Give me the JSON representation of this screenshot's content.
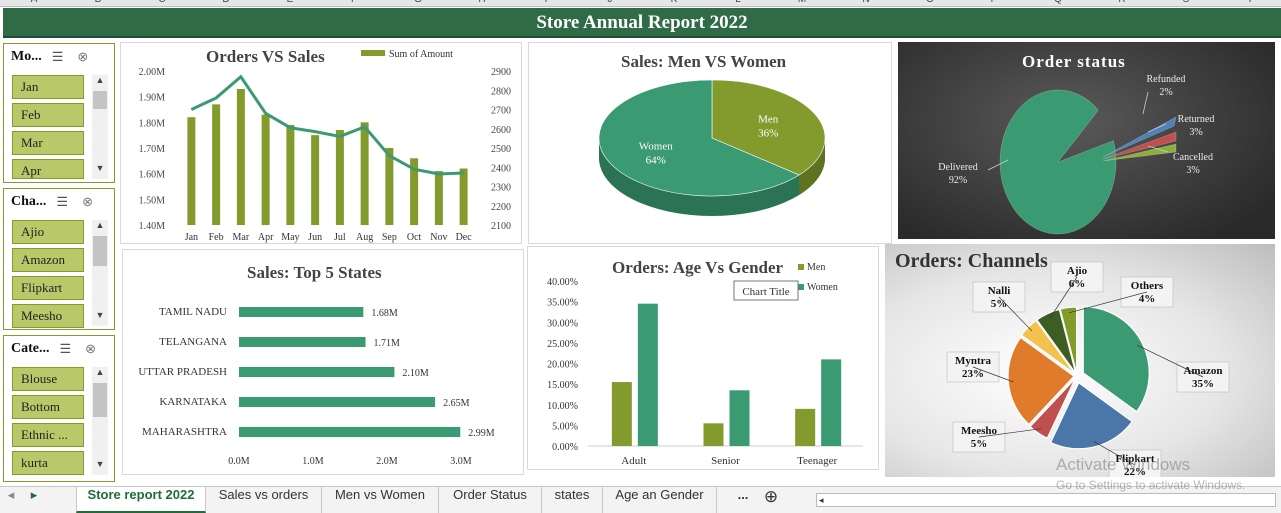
{
  "column_headers": [
    "A",
    "B",
    "C",
    "D",
    "E",
    "F",
    "G",
    "H",
    "I",
    "J",
    "K",
    "L",
    "M",
    "N",
    "O",
    "P",
    "Q",
    "R",
    "S",
    "T"
  ],
  "title": "Store Annual Report 2022",
  "slicers": {
    "month": {
      "header": "Mo...",
      "items": [
        "Jan",
        "Feb",
        "Mar",
        "Apr"
      ]
    },
    "channel": {
      "header": "Cha...",
      "items": [
        "Ajio",
        "Amazon",
        "Flipkart",
        "Meesho"
      ]
    },
    "category": {
      "header": "Cate...",
      "items": [
        "Blouse",
        "Bottom",
        "Ethnic ...",
        "kurta"
      ]
    }
  },
  "colors": {
    "title_bar": "#2e6b46",
    "olive": "#839a2c",
    "teal": "#3a9a72",
    "slicer_item": "#b9c96a"
  },
  "charts": {
    "orders_vs_sales": {
      "title": "Orders VS Sales",
      "legend": "Sum of Amount",
      "y_left_ticks": [
        "2.00M",
        "1.90M",
        "1.80M",
        "1.70M",
        "1.60M",
        "1.50M",
        "1.40M"
      ],
      "y_right_ticks": [
        "2900",
        "2800",
        "2700",
        "2600",
        "2500",
        "2400",
        "2300",
        "2200",
        "2100"
      ]
    },
    "men_vs_women": {
      "title": "Sales: Men VS Women"
    },
    "order_status": {
      "title": "Order status"
    },
    "top5_states": {
      "title": "Sales: Top 5 States",
      "x_ticks": [
        "0.0M",
        "1.0M",
        "2.0M",
        "3.0M"
      ]
    },
    "age_vs_gender": {
      "title": "Orders: Age Vs Gender",
      "tooltip": "Chart Title",
      "y_ticks": [
        "40.00%",
        "35.00%",
        "30.00%",
        "25.00%",
        "20.00%",
        "15.00%",
        "10.00%",
        "5.00%",
        "0.00%"
      ]
    },
    "channels": {
      "title": "Orders: Channels"
    }
  },
  "chart_data": [
    {
      "type": "bar+line",
      "title": "Orders VS Sales",
      "categories": [
        "Jan",
        "Feb",
        "Mar",
        "Apr",
        "May",
        "Jun",
        "Jul",
        "Aug",
        "Sep",
        "Oct",
        "Nov",
        "Dec"
      ],
      "series": [
        {
          "name": "Sum of Amount",
          "axis": "left",
          "values": [
            1.82,
            1.87,
            1.93,
            1.83,
            1.79,
            1.75,
            1.77,
            1.8,
            1.7,
            1.66,
            1.61,
            1.62
          ]
        },
        {
          "axis": "right",
          "values": [
            2700,
            2760,
            2870,
            2680,
            2605,
            2585,
            2560,
            2610,
            2460,
            2390,
            2365,
            2370
          ]
        }
      ],
      "ylim_left": [
        1.4,
        2.0
      ],
      "ylim_right": [
        2100,
        2900
      ]
    },
    {
      "type": "pie",
      "title": "Sales: Men VS Women",
      "categories": [
        "Men",
        "Women"
      ],
      "values": [
        36,
        64
      ],
      "labels": [
        "36%",
        "64%"
      ]
    },
    {
      "type": "pie",
      "title": "Order status",
      "categories": [
        "Delivered",
        "Cancelled",
        "Returned",
        "Refunded"
      ],
      "values": [
        92,
        3,
        3,
        2
      ],
      "labels": [
        "92%",
        "3%",
        "3%",
        "2%"
      ]
    },
    {
      "type": "bar",
      "title": "Sales: Top 5 States",
      "categories": [
        "TAMIL NADU",
        "TELANGANA",
        "UTTAR PRADESH",
        "KARNATAKA",
        "MAHARASHTRA"
      ],
      "values": [
        1.68,
        1.71,
        2.1,
        2.65,
        2.99
      ],
      "labels": [
        "1.68M",
        "1.71M",
        "2.10M",
        "2.65M",
        "2.99M"
      ],
      "xlim": [
        0,
        3.0
      ]
    },
    {
      "type": "bar",
      "title": "Orders: Age Vs Gender",
      "categories": [
        "Adult",
        "Senior",
        "Teenager"
      ],
      "series": [
        {
          "name": "Men",
          "values": [
            15.5,
            5.5,
            9.0
          ]
        },
        {
          "name": "Women",
          "values": [
            34.5,
            13.5,
            21.0
          ]
        }
      ],
      "ylim": [
        0,
        40
      ]
    },
    {
      "type": "pie",
      "title": "Orders: Channels",
      "categories": [
        "Amazon",
        "Flipkart",
        "Meesho",
        "Myntra",
        "Nalli",
        "Ajio",
        "Others"
      ],
      "values": [
        35,
        22,
        5,
        23,
        5,
        6,
        4
      ],
      "labels": [
        "35%",
        "22%",
        "5%",
        "23%",
        "5%",
        "6%",
        "4%"
      ]
    }
  ],
  "sheet_tabs": [
    "Store report 2022",
    "Sales vs orders",
    "Men vs Women",
    "Order Status",
    "states",
    "Age an Gender"
  ],
  "tabs_more": "...",
  "watermark": {
    "line1": "Activate Windows",
    "line2": "Go to Settings to activate Windows."
  }
}
